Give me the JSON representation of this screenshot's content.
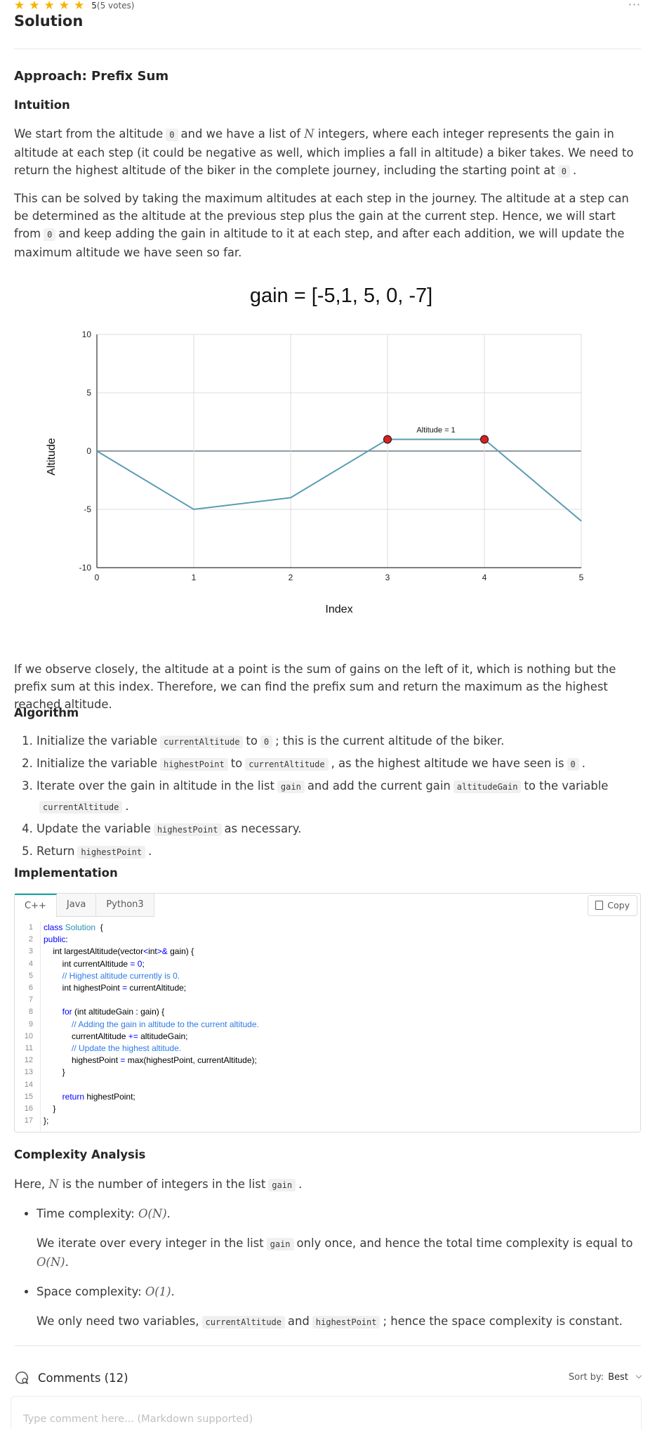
{
  "rating": {
    "score": "5",
    "votes": "(5 votes)",
    "stars": 5
  },
  "title": "Solution",
  "approach": "Approach: Prefix Sum",
  "intuition": {
    "heading": "Intuition",
    "p1_a": "We start from the altitude",
    "p1_code0": "0",
    "p1_b": "and we have a list of",
    "p1_N": "N",
    "p1_c": "integers, where each integer represents the gain in altitude at each step (it could be negative as well, which implies a fall in altitude) a biker takes. We need to return the highest altitude of the biker in the complete journey, including the starting point at",
    "p1_code1": "0",
    "p1_d": ".",
    "p2_a": "This can be solved by taking the maximum altitudes at each step in the journey. The altitude at a step can be determined as the altitude at the previous step plus the gain at the current step. Hence, we will start from",
    "p2_code": "0",
    "p2_b": "and keep adding the gain in altitude to it at each step, and after each addition, we will update the maximum altitude we have seen so far.",
    "p3": "If we observe closely, the altitude at a point is the sum of gains on the left of it, which is nothing but the prefix sum at this index. Therefore, we can find the prefix sum and return the maximum as the highest reached altitude."
  },
  "chart_data": {
    "type": "line",
    "title": "gain = [-5,1, 5, 0, -7]",
    "xlabel": "Index",
    "ylabel": "Altitude",
    "x": [
      0,
      1,
      2,
      3,
      4,
      5
    ],
    "values": [
      0,
      -5,
      -4,
      1,
      1,
      -6
    ],
    "xlim": [
      0,
      5
    ],
    "ylim": [
      -10,
      10
    ],
    "xticks": [
      "0",
      "1",
      "2",
      "3",
      "4",
      "5"
    ],
    "yticks": [
      "10",
      "5",
      "0",
      "-5",
      "-10"
    ],
    "highlight_points": [
      3,
      4
    ],
    "annotation": "Altitude = 1",
    "grid": true,
    "line_color": "#5b9bb5",
    "point_color": "#e01e1e"
  },
  "algorithm": {
    "heading": "Algorithm",
    "s1_a": "Initialize the variable",
    "s1_c1": "currentAltitude",
    "s1_b": "to",
    "s1_c2": "0",
    "s1_d": "; this is the current altitude of the biker.",
    "s2_a": "Initialize the variable",
    "s2_c1": "highestPoint",
    "s2_b": "to",
    "s2_c2": "currentAltitude",
    "s2_d": ", as the highest altitude we have seen is",
    "s2_c3": "0",
    "s2_e": ".",
    "s3_a": "Iterate over the gain in altitude in the list",
    "s3_c1": "gain",
    "s3_b": "and add the current gain",
    "s3_c2": "altitudeGain",
    "s3_d": "to the variable",
    "s3_c3": "currentAltitude",
    "s3_e": ".",
    "s4_a": "Update the variable",
    "s4_c1": "highestPoint",
    "s4_b": "as necessary.",
    "s5_a": "Return",
    "s5_c1": "highestPoint",
    "s5_b": "."
  },
  "implementation": {
    "heading": "Implementation",
    "tabs": [
      "C++",
      "Java",
      "Python3"
    ],
    "copy": "Copy",
    "line_numbers": [
      "1",
      "2",
      "3",
      "4",
      "5",
      "6",
      "7",
      "8",
      "9",
      "10",
      "11",
      "12",
      "13",
      "14",
      "15",
      "16",
      "17"
    ]
  },
  "complexity": {
    "heading": "Complexity Analysis",
    "intro_a": "Here,",
    "intro_N": "N",
    "intro_b": "is the number of integers in the list",
    "intro_code": "gain",
    "intro_c": ".",
    "time_label": "Time complexity:",
    "time_val": "O(N)",
    "time_dot": ".",
    "time_desc_a": "We iterate over every integer in the list",
    "time_desc_code": "gain",
    "time_desc_b": "only once, and hence the total time complexity is equal to",
    "time_desc_val": "O(N)",
    "time_desc_c": ".",
    "space_label": "Space complexity:",
    "space_val": "O(1)",
    "space_dot": ".",
    "space_desc_a": "We only need two variables,",
    "space_desc_c1": "currentAltitude",
    "space_desc_b": "and",
    "space_desc_c2": "highestPoint",
    "space_desc_c": "; hence the space complexity is constant."
  },
  "comments": {
    "title": "Comments (12)",
    "sort_label": "Sort by:",
    "sort_value": "Best",
    "placeholder": "Type comment here... (Markdown supported)"
  }
}
